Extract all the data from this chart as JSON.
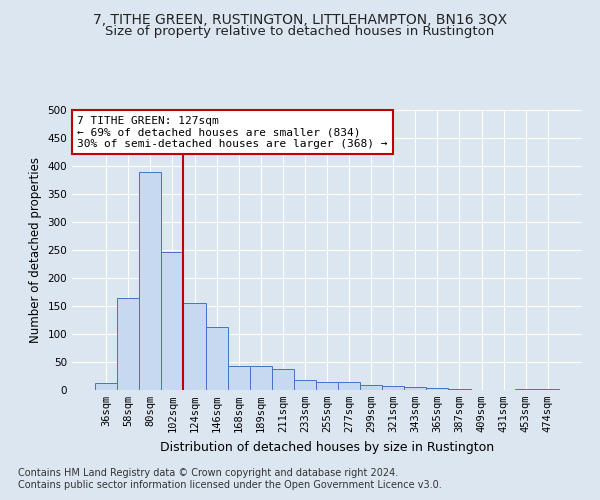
{
  "title": "7, TITHE GREEN, RUSTINGTON, LITTLEHAMPTON, BN16 3QX",
  "subtitle": "Size of property relative to detached houses in Rustington",
  "xlabel": "Distribution of detached houses by size in Rustington",
  "ylabel": "Number of detached properties",
  "footnote1": "Contains HM Land Registry data © Crown copyright and database right 2024.",
  "footnote2": "Contains public sector information licensed under the Open Government Licence v3.0.",
  "categories": [
    "36sqm",
    "58sqm",
    "80sqm",
    "102sqm",
    "124sqm",
    "146sqm",
    "168sqm",
    "189sqm",
    "211sqm",
    "233sqm",
    "255sqm",
    "277sqm",
    "299sqm",
    "321sqm",
    "343sqm",
    "365sqm",
    "387sqm",
    "409sqm",
    "431sqm",
    "453sqm",
    "474sqm"
  ],
  "values": [
    12,
    165,
    390,
    247,
    155,
    113,
    42,
    42,
    38,
    18,
    14,
    14,
    9,
    7,
    5,
    3,
    1,
    0,
    0,
    2,
    2
  ],
  "bar_color": "#c6d9f0",
  "bar_edge_color": "#4472c4",
  "background_color": "#dce6f1",
  "property_label": "7 TITHE GREEN: 127sqm",
  "annotation_line1": "← 69% of detached houses are smaller (834)",
  "annotation_line2": "30% of semi-detached houses are larger (368) →",
  "vline_color": "#c00000",
  "vline_x_index": 3.5,
  "annotation_box_facecolor": "#ffffff",
  "annotation_box_edgecolor": "#c00000",
  "ylim": [
    0,
    500
  ],
  "yticks": [
    0,
    50,
    100,
    150,
    200,
    250,
    300,
    350,
    400,
    450,
    500
  ],
  "title_fontsize": 10,
  "subtitle_fontsize": 9.5,
  "xlabel_fontsize": 9,
  "ylabel_fontsize": 8.5,
  "tick_fontsize": 7.5,
  "annot_fontsize": 8,
  "footnote_fontsize": 7
}
